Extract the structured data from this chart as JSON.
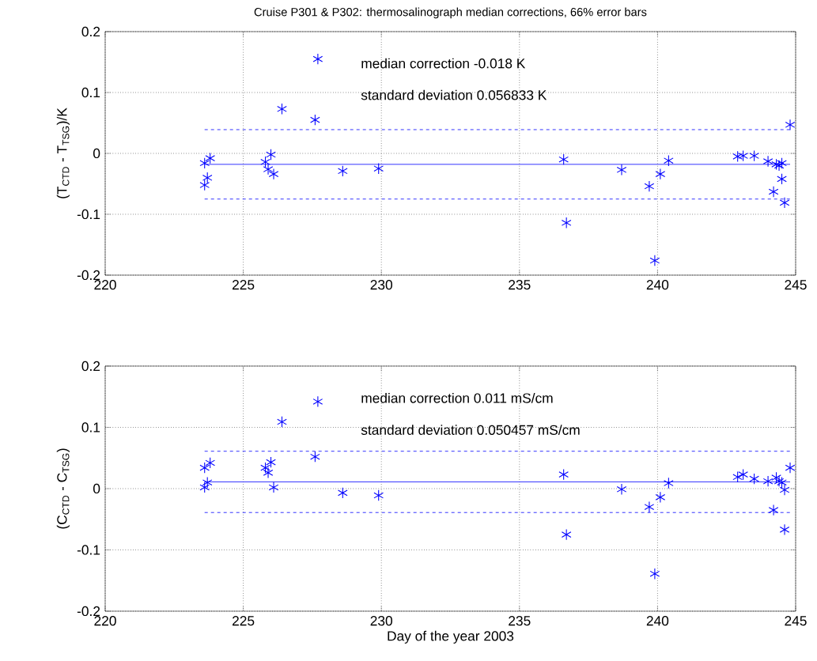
{
  "chart_data": [
    {
      "type": "scatter",
      "title": "Cruise P301 & P302: thermosalinograph median corrections, 66% error bars",
      "ylabel": "(T$_{CTD}$ - T$_{TSG}$)/K",
      "annotations": [
        "median correction -0.018 K",
        "standard deviation 0.056833 K"
      ],
      "xlim": [
        220,
        245
      ],
      "ylim": [
        -0.2,
        0.2
      ],
      "xticks": [
        220,
        225,
        230,
        235,
        240,
        245
      ],
      "yticks": [
        -0.2,
        -0.1,
        0,
        0.1,
        0.2
      ],
      "grid": true,
      "marker": "cross",
      "series": [
        {
          "color": "#0000ff",
          "x": [
            223.6,
            223.6,
            223.7,
            223.8,
            225.8,
            225.9,
            226.0,
            226.1,
            226.4,
            227.6,
            227.7,
            228.6,
            229.9,
            236.6,
            236.7,
            238.7,
            239.7,
            239.9,
            240.1,
            240.4,
            242.9,
            243.1,
            243.5,
            244.0,
            244.2,
            244.3,
            244.4,
            244.5,
            244.5,
            244.6,
            244.8
          ],
          "values": [
            -0.016,
            -0.052,
            -0.04,
            -0.008,
            -0.014,
            -0.026,
            -0.002,
            -0.034,
            0.073,
            0.055,
            0.155,
            -0.029,
            -0.025,
            -0.01,
            -0.114,
            -0.027,
            -0.054,
            -0.176,
            -0.034,
            -0.012,
            -0.005,
            -0.004,
            -0.004,
            -0.013,
            -0.063,
            -0.018,
            -0.02,
            -0.016,
            -0.042,
            -0.081,
            0.047
          ]
        },
        {
          "type": "line",
          "color": "#0000ff",
          "marker": "none",
          "line_style": "solid",
          "x": [
            223.6,
            244.8
          ],
          "values": [
            -0.018,
            -0.018
          ]
        },
        {
          "type": "line",
          "color": "#0000ff",
          "marker": "none",
          "line_style": "dashed",
          "x": [
            223.6,
            244.8
          ],
          "values": [
            0.039,
            0.039
          ]
        },
        {
          "type": "line",
          "color": "#0000ff",
          "marker": "none",
          "line_style": "dashed",
          "x": [
            223.6,
            244.8
          ],
          "values": [
            -0.075,
            -0.075
          ]
        }
      ]
    },
    {
      "type": "scatter",
      "xlabel": "Day of the year 2003",
      "ylabel": "(C$_{CTD}$ - C$_{TSG}$)",
      "annotations": [
        "median correction 0.011 mS/cm",
        "standard deviation 0.050457 mS/cm"
      ],
      "xlim": [
        220,
        245
      ],
      "ylim": [
        -0.2,
        0.2
      ],
      "xticks": [
        220,
        225,
        230,
        235,
        240,
        245
      ],
      "yticks": [
        -0.2,
        -0.1,
        0,
        0.1,
        0.2
      ],
      "grid": true,
      "marker": "cross",
      "series": [
        {
          "color": "#0000ff",
          "x": [
            223.6,
            223.6,
            223.7,
            223.8,
            225.8,
            225.9,
            226.0,
            226.1,
            226.4,
            227.6,
            227.7,
            228.6,
            229.9,
            236.6,
            236.7,
            238.7,
            239.7,
            239.9,
            240.1,
            240.4,
            242.9,
            243.1,
            243.5,
            244.0,
            244.2,
            244.3,
            244.4,
            244.5,
            244.6,
            244.6,
            244.8
          ],
          "values": [
            0.034,
            0.002,
            0.01,
            0.042,
            0.034,
            0.026,
            0.043,
            0.002,
            0.109,
            0.052,
            0.142,
            -0.007,
            -0.011,
            0.023,
            -0.075,
            -0.001,
            -0.03,
            -0.139,
            -0.014,
            0.009,
            0.019,
            0.023,
            0.016,
            0.012,
            -0.035,
            0.018,
            0.012,
            0.01,
            -0.002,
            -0.067,
            0.034
          ]
        },
        {
          "type": "line",
          "color": "#0000ff",
          "marker": "none",
          "line_style": "solid",
          "x": [
            223.6,
            244.8
          ],
          "values": [
            0.011,
            0.011
          ]
        },
        {
          "type": "line",
          "color": "#0000ff",
          "marker": "none",
          "line_style": "dashed",
          "x": [
            223.6,
            244.8
          ],
          "values": [
            0.061,
            0.061
          ]
        },
        {
          "type": "line",
          "color": "#0000ff",
          "marker": "none",
          "line_style": "dashed",
          "x": [
            223.6,
            244.8
          ],
          "values": [
            -0.039,
            -0.039
          ]
        }
      ]
    }
  ]
}
